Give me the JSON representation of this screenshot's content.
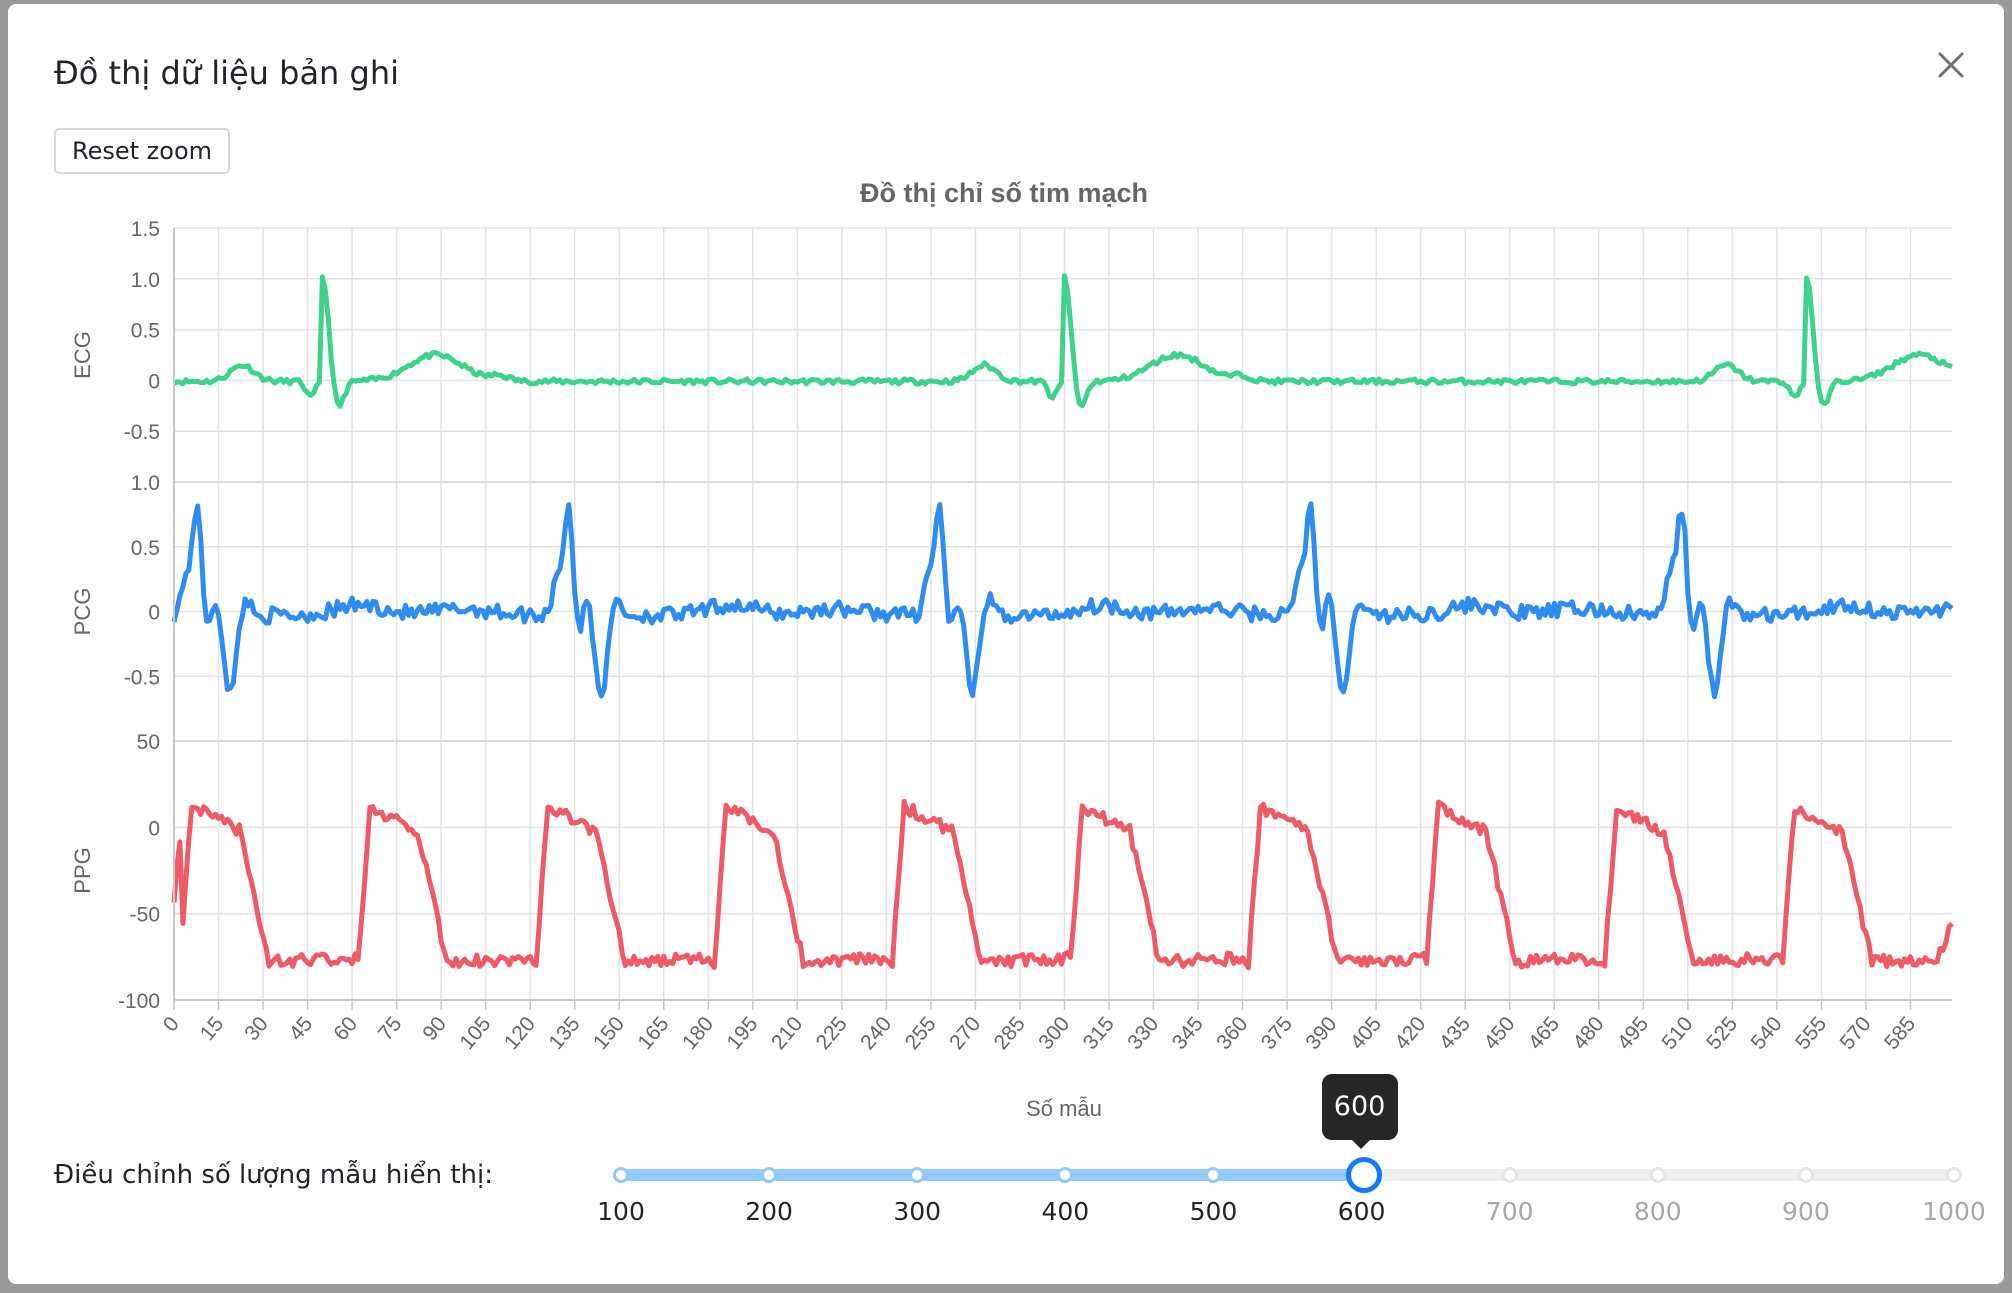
{
  "modal": {
    "title": "Đồ thị dữ liệu bản ghi",
    "reset_label": "Reset zoom"
  },
  "chart_data": {
    "type": "line",
    "title": "Đồ thị chỉ số tim mạch",
    "xlabel": "Số mẫu",
    "x_range": [
      0,
      599
    ],
    "x_ticks": [
      "0",
      "15",
      "30",
      "45",
      "60",
      "75",
      "90",
      "105",
      "120",
      "135",
      "150",
      "165",
      "180",
      "195",
      "210",
      "225",
      "240",
      "255",
      "270",
      "285",
      "300",
      "315",
      "330",
      "345",
      "360",
      "375",
      "390",
      "405",
      "420",
      "435",
      "450",
      "465",
      "480",
      "495",
      "510",
      "525",
      "540",
      "555",
      "570",
      "585"
    ],
    "grid": true,
    "panels": [
      {
        "name": "ECG",
        "ylabel": "ECG",
        "color": "#3ed38c",
        "ylim": [
          -1,
          1.5
        ],
        "yticks": [
          "1.5",
          "1.0",
          "0.5",
          "0",
          "-0.5"
        ],
        "beat_period": 250,
        "r_peaks": [
          50,
          300,
          550
        ],
        "points": [
          [
            0,
            -0.03
          ],
          [
            20,
            0.0
          ],
          [
            25,
            0.15
          ],
          [
            30,
            0.05
          ],
          [
            40,
            -0.01
          ],
          [
            46,
            -0.15
          ],
          [
            48,
            0.05
          ],
          [
            50,
            1.0
          ],
          [
            52,
            0.1
          ],
          [
            56,
            -0.28
          ],
          [
            60,
            0.0
          ],
          [
            70,
            0.0
          ],
          [
            80,
            0.15
          ],
          [
            88,
            0.25
          ],
          [
            95,
            0.2
          ],
          [
            105,
            0.0
          ],
          [
            240,
            -0.01
          ],
          [
            250,
            0.12
          ],
          [
            300,
            1.1
          ],
          [
            306,
            -0.3
          ],
          [
            335,
            0.28
          ],
          [
            360,
            0.05
          ],
          [
            550,
            1.15
          ],
          [
            556,
            -0.28
          ],
          [
            585,
            0.25
          ],
          [
            599,
            0.07
          ]
        ]
      },
      {
        "name": "PCG",
        "ylabel": "PCG",
        "color": "#2f8cf0",
        "ylim": [
          -1,
          1
        ],
        "yticks": [
          "1.0",
          "0.5",
          "0",
          "-0.5"
        ],
        "beat_period": 125,
        "s1": [
          8,
          133,
          258,
          383,
          508
        ],
        "points": [
          [
            0,
            0.0
          ],
          [
            5,
            0.4
          ],
          [
            8,
            0.95
          ],
          [
            12,
            -0.2
          ],
          [
            20,
            -0.65
          ],
          [
            25,
            0.15
          ],
          [
            30,
            -0.05
          ],
          [
            60,
            0.1
          ],
          [
            100,
            -0.04
          ],
          [
            125,
            0.05
          ],
          [
            133,
            0.55
          ],
          [
            140,
            -0.4
          ],
          [
            150,
            0.0
          ],
          [
            258,
            0.85
          ],
          [
            270,
            -0.65
          ],
          [
            383,
            0.6
          ],
          [
            395,
            -0.45
          ],
          [
            508,
            0.95
          ],
          [
            520,
            -0.65
          ],
          [
            599,
            -0.02
          ]
        ]
      },
      {
        "name": "PPG",
        "ylabel": "PPG",
        "color": "#ef5a67",
        "ylim": [
          -100,
          50
        ],
        "yticks": [
          "50",
          "0",
          "-50",
          "-100"
        ],
        "beat_period": 60,
        "points": [
          [
            0,
            -40
          ],
          [
            5,
            12
          ],
          [
            20,
            5
          ],
          [
            28,
            -20
          ],
          [
            36,
            -85
          ],
          [
            45,
            -78
          ],
          [
            58,
            -75
          ],
          [
            66,
            12
          ],
          [
            80,
            5
          ],
          [
            90,
            -20
          ],
          [
            96,
            -82
          ],
          [
            110,
            -78
          ],
          [
            118,
            -75
          ],
          [
            126,
            12
          ],
          [
            599,
            -52
          ]
        ]
      }
    ]
  },
  "slider": {
    "label": "Điều chỉnh số lượng mẫu hiển thị:",
    "min": 100,
    "max": 1000,
    "value": 600,
    "marks": [
      "100",
      "200",
      "300",
      "400",
      "500",
      "600",
      "700",
      "800",
      "900",
      "1000"
    ],
    "tooltip": "600",
    "active_color": "#1677ff",
    "track_color": "#91caff"
  }
}
